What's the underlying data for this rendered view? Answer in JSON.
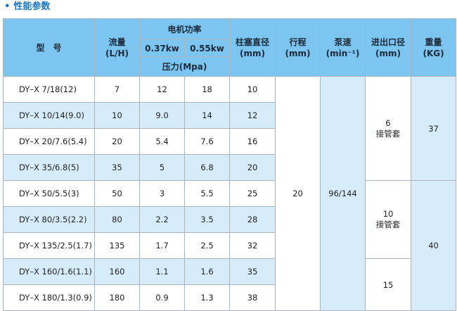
{
  "section_title": "性能参数",
  "headers": {
    "model": "型　号",
    "flow": "流量",
    "flow_unit": "(L/H)",
    "motor_power": "电机功率",
    "power_a": "0.37kw",
    "power_b": "0.55kw",
    "pressure": "压力(Mpa)",
    "plunger": "柱塞直径",
    "plunger_unit": "(mm)",
    "stroke": "行程",
    "stroke_unit": "(mm)",
    "speed": "泵速",
    "speed_unit": "(min⁻¹)",
    "port": "进出口径",
    "port_unit": "(mm)",
    "weight": "重量",
    "weight_unit": "(KG)"
  },
  "rows": [
    {
      "model": "DY–X 7/18(12)",
      "flow": "7",
      "p1": "12",
      "p2": "18",
      "plunger": "10"
    },
    {
      "model": "DY–X 10/14(9.0)",
      "flow": "10",
      "p1": "9.0",
      "p2": "14",
      "plunger": "12"
    },
    {
      "model": "DY–X 20/7.6(5.4)",
      "flow": "20",
      "p1": "5.4",
      "p2": "7.6",
      "plunger": "16"
    },
    {
      "model": "DY–X 35/6.8(5)",
      "flow": "35",
      "p1": "5",
      "p2": "6.8",
      "plunger": "20"
    },
    {
      "model": "DY–X 50/5.5(3)",
      "flow": "50",
      "p1": "3",
      "p2": "5.5",
      "plunger": "25"
    },
    {
      "model": "DY–X 80/3.5(2.2)",
      "flow": "80",
      "p1": "2.2",
      "p2": "3.5",
      "plunger": "28"
    },
    {
      "model": "DY–X 135/2.5(1.7)",
      "flow": "135",
      "p1": "1.7",
      "p2": "2.5",
      "plunger": "32"
    },
    {
      "model": "DY–X 160/1.6(1.1)",
      "flow": "160",
      "p1": "1.1",
      "p2": "1.6",
      "plunger": "35"
    },
    {
      "model": "DY–X 180/1.3(0.9)",
      "flow": "180",
      "p1": "0.9",
      "p2": "1.3",
      "plunger": "38"
    }
  ],
  "merged": {
    "stroke": "20",
    "speed": "96/144",
    "port_1": "6",
    "port_1_note": "接管套",
    "port_2": "10",
    "port_2_note": "接管套",
    "port_3": "15",
    "weight_1": "37",
    "weight_2": "40"
  }
}
